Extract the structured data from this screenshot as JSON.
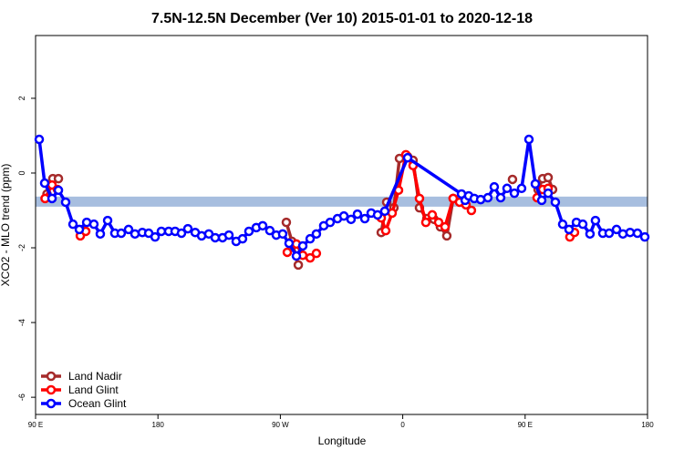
{
  "chart_data": {
    "type": "line",
    "title": "7.5N-12.5N December (Ver 10)   2015-01-01 to 2020-12-18",
    "x_label": "Longitude",
    "y_label": "XCO2 - MLO trend (ppm)",
    "xlim": [
      90,
      540
    ],
    "ylim": [
      -6.46,
      3.68
    ],
    "xticks": [
      {
        "value": 90,
        "label": "90 E"
      },
      {
        "value": 180,
        "label": "180"
      },
      {
        "value": 270,
        "label": "90 W"
      },
      {
        "value": 360,
        "label": "0"
      },
      {
        "value": 450,
        "label": "90 E"
      },
      {
        "value": 540,
        "label": "180"
      }
    ],
    "yticks": [
      -6,
      -4,
      -2,
      0,
      2
    ],
    "band": {
      "lim": [
        -0.9,
        -0.63
      ],
      "color": "#a7bedf"
    },
    "legend": "bottom-left",
    "series": [
      {
        "name": "Land Nadir",
        "color": "#a52a2a",
        "x": [
          98.4,
          102.7,
          106.8,
          null,
          124.2,
          null,
          274.4,
          278.5,
          283.2,
          null,
          344.2,
          348.2,
          353.5,
          357.6,
          363.6,
          367.6,
          372.3,
          377.7,
          383.0,
          387.7,
          392.4,
          397.1,
          null,
          440.7,
          null,
          459.5,
          462.9,
          466.9,
          470.2
        ],
        "values": [
          -0.56,
          -0.15,
          -0.15,
          null,
          -1.59,
          null,
          -1.32,
          -1.83,
          -2.46,
          null,
          -1.59,
          -0.78,
          -0.93,
          0.39,
          0.44,
          0.34,
          -0.93,
          -1.22,
          -1.24,
          -1.44,
          -1.68,
          -0.68,
          null,
          -0.17,
          null,
          -0.44,
          -0.15,
          -0.12,
          -0.44
        ]
      },
      {
        "name": "Land Glint",
        "color": "#ff0000",
        "x": [
          97.0,
          102.1,
          106.1,
          null,
          122.9,
          126.9,
          null,
          275.1,
          281.8,
          286.5,
          291.9,
          296.5,
          null,
          344.2,
          347.5,
          352.2,
          356.9,
          362.3,
          367.6,
          372.3,
          377.0,
          381.7,
          386.4,
          391.1,
          397.1,
          401.8,
          406.5,
          410.5,
          null,
          458.8,
          462.9,
          466.9,
          null,
          482.9,
          486.3
        ],
        "values": [
          -0.68,
          -0.32,
          -0.44,
          null,
          -1.68,
          -1.56,
          null,
          -2.12,
          -1.9,
          -2.2,
          -2.27,
          -2.15,
          null,
          -1.2,
          -1.54,
          -1.07,
          -0.46,
          0.49,
          0.2,
          -0.68,
          -1.32,
          -1.12,
          -1.32,
          -1.44,
          -0.68,
          -0.78,
          -0.85,
          -1.0,
          null,
          -0.66,
          -0.44,
          -0.41,
          null,
          -1.71,
          -1.59
        ]
      },
      {
        "name": "Ocean Glint",
        "color": "#0000ff",
        "x": [
          92.7,
          96.7,
          102.1,
          106.8,
          112.1,
          117.5,
          122.2,
          127.6,
          132.9,
          137.6,
          143.0,
          148.3,
          153.0,
          158.4,
          163.1,
          168.5,
          173.2,
          177.9,
          182.5,
          187.9,
          192.6,
          197.3,
          202.0,
          207.4,
          212.1,
          217.4,
          222.1,
          227.5,
          232.2,
          237.5,
          242.2,
          246.9,
          252.3,
          257.0,
          262.3,
          267.0,
          271.7,
          276.4,
          281.8,
          286.5,
          291.9,
          296.5,
          301.9,
          306.6,
          312.0,
          316.7,
          322.0,
          326.7,
          332.1,
          336.8,
          341.5,
          346.8,
          363.6,
          403.2,
          405.9,
          408.5,
          412.6,
          417.3,
          422.6,
          427.3,
          432.0,
          436.7,
          442.1,
          447.4,
          452.8,
          457.5,
          462.2,
          466.9,
          472.2,
          477.6,
          482.3,
          487.7,
          492.4,
          497.7,
          501.7,
          507.1,
          511.8,
          517.2,
          521.9,
          527.2,
          532.6,
          538.0
        ],
        "values": [
          0.9,
          -0.27,
          -0.68,
          -0.46,
          -0.78,
          -1.37,
          -1.51,
          -1.32,
          -1.37,
          -1.63,
          -1.27,
          -1.61,
          -1.61,
          -1.51,
          -1.63,
          -1.59,
          -1.61,
          -1.71,
          -1.56,
          -1.56,
          -1.56,
          -1.61,
          -1.49,
          -1.59,
          -1.68,
          -1.63,
          -1.73,
          -1.73,
          -1.66,
          -1.83,
          -1.76,
          -1.56,
          -1.46,
          -1.41,
          -1.54,
          -1.66,
          -1.63,
          -1.88,
          -2.22,
          -1.95,
          -1.76,
          -1.63,
          -1.41,
          -1.32,
          -1.22,
          -1.15,
          -1.24,
          -1.1,
          -1.22,
          -1.07,
          -1.12,
          -1.02,
          0.41,
          -0.56,
          -0.73,
          -0.61,
          -0.68,
          -0.71,
          -0.66,
          -0.37,
          -0.66,
          -0.41,
          -0.54,
          -0.41,
          0.9,
          -0.29,
          -0.73,
          -0.54,
          -0.78,
          -1.37,
          -1.51,
          -1.32,
          -1.37,
          -1.63,
          -1.27,
          -1.61,
          -1.61,
          -1.51,
          -1.63,
          -1.59,
          -1.61,
          -1.71
        ]
      }
    ]
  }
}
